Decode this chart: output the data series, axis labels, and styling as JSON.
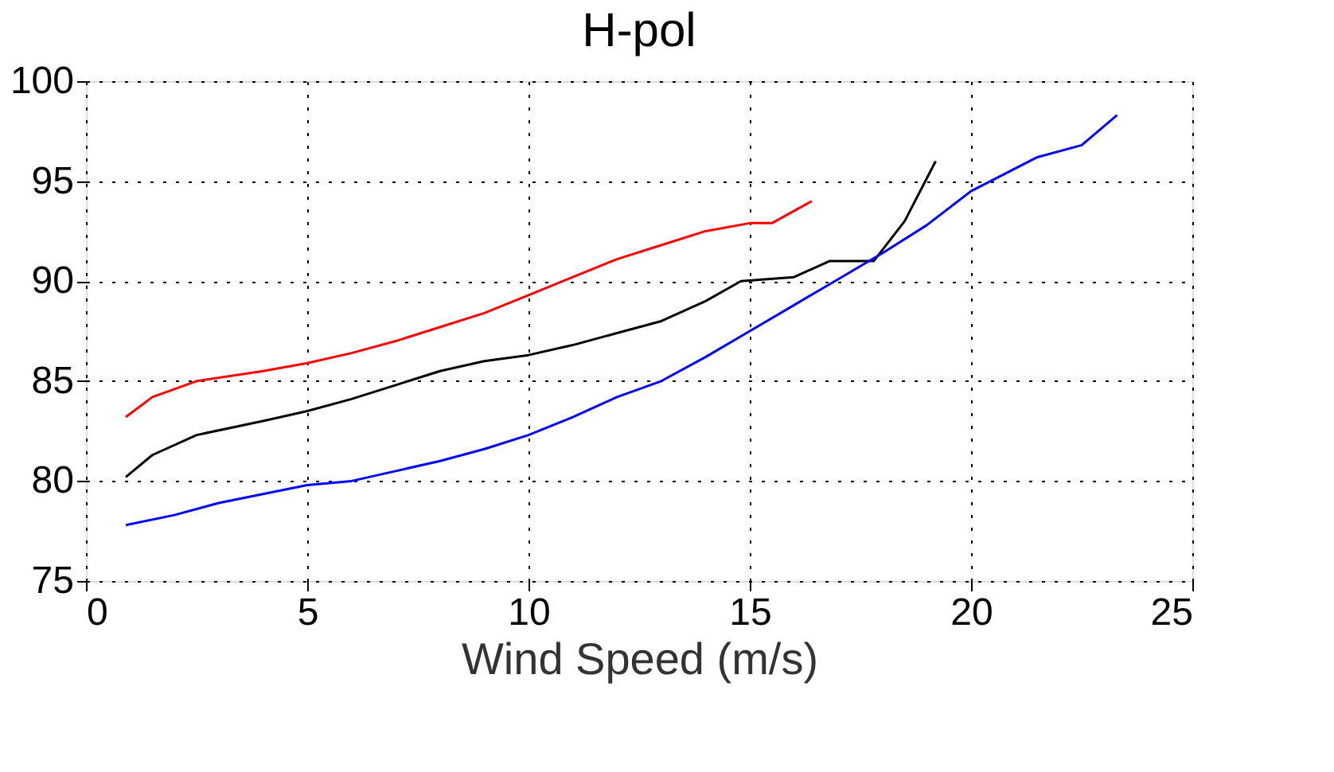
{
  "chart_data": {
    "type": "line",
    "title": "H-pol",
    "xlabel": "Wind Speed (m/s)",
    "xlim": [
      0,
      25
    ],
    "xticks": [
      0,
      5,
      10,
      15,
      20,
      25
    ],
    "ylim": [
      75,
      100
    ],
    "yticks": [
      75,
      80,
      85,
      90,
      95,
      100
    ],
    "grid": true,
    "marker": "none",
    "line_style": "solid",
    "series": [
      {
        "color": "#ff0000",
        "x": [
          0.9,
          1.5,
          2.5,
          4,
          5,
          6,
          7,
          8,
          9,
          10,
          11,
          12,
          13,
          14,
          15,
          15.5,
          16.4
        ],
        "values": [
          83.2,
          84.2,
          85,
          85.5,
          85.9,
          86.4,
          87,
          87.7,
          88.4,
          89.3,
          90.2,
          91.1,
          91.8,
          92.5,
          92.9,
          92.9,
          94
        ]
      },
      {
        "color": "#000000",
        "x": [
          0.9,
          1.5,
          2.5,
          4,
          5,
          6,
          7,
          8,
          9,
          10,
          11,
          12,
          13,
          14,
          14.8,
          16,
          16.8,
          17.8,
          18.5,
          19.2
        ],
        "values": [
          80.2,
          81.3,
          82.3,
          83,
          83.5,
          84.1,
          84.8,
          85.5,
          86,
          86.3,
          86.8,
          87.4,
          88,
          89,
          90,
          90.2,
          91,
          91,
          93,
          96
        ]
      },
      {
        "color": "#0000ff",
        "x": [
          0.9,
          2,
          3,
          5,
          6,
          7,
          8,
          9,
          10,
          11,
          12,
          13,
          14,
          15,
          16,
          17,
          18,
          19,
          20,
          21.5,
          22.5,
          23.3
        ],
        "values": [
          77.8,
          78.3,
          78.9,
          79.8,
          80,
          80.5,
          81,
          81.6,
          82.3,
          83.2,
          84.2,
          85,
          86.2,
          87.5,
          88.8,
          90.1,
          91.4,
          92.8,
          94.5,
          96.2,
          96.8,
          98.3
        ]
      }
    ]
  }
}
